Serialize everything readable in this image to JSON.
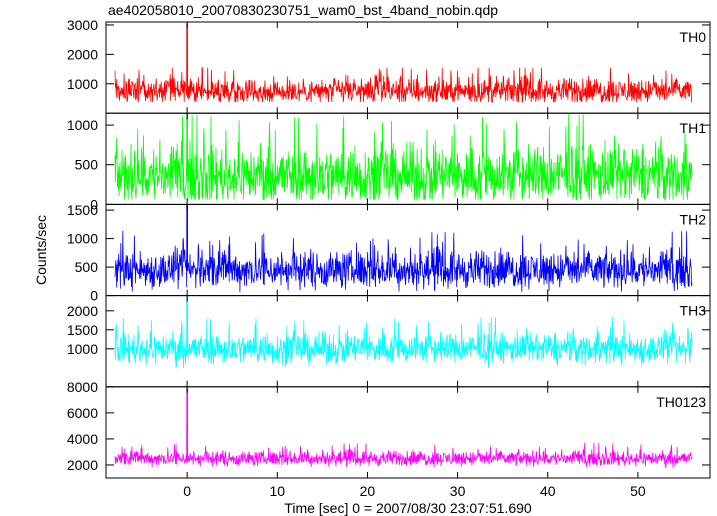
{
  "title": "ae402058010_20070830230751_wam0_bst_4band_nobin.qdp",
  "chart_data": {
    "type": "line",
    "title": "ae402058010_20070830230751_wam0_bst_4band_nobin.qdp",
    "xlabel": "Time [sec] 0 = 2007/08/30 23:07:51.690",
    "ylabel": "Counts/sec",
    "xlim": [
      -9,
      58
    ],
    "x_ticks": [
      0,
      10,
      20,
      30,
      40,
      50
    ],
    "panels": [
      {
        "name": "TH0",
        "color": "#ff0000",
        "ylim": [
          0,
          3100
        ],
        "y_ticks": [
          1000,
          2000,
          3000
        ],
        "baseline": 750,
        "noise": 300,
        "min": 380,
        "max": 1550,
        "peak_time": 0.0,
        "peak_value": 3050
      },
      {
        "name": "TH1",
        "color": "#00ff00",
        "ylim": [
          0,
          1150
        ],
        "y_ticks": [
          0,
          500,
          1000
        ],
        "baseline": 360,
        "noise": 260,
        "min": 60,
        "max": 1150,
        "peak_time": 0.0,
        "peak_value": 1150
      },
      {
        "name": "TH2",
        "color": "#0000ff",
        "ylim": [
          0,
          1600
        ],
        "y_ticks": [
          0,
          500,
          1000,
          1500
        ],
        "baseline": 450,
        "noise": 230,
        "min": 60,
        "max": 1350,
        "peak_time": 0.0,
        "peak_value": 1600
      },
      {
        "name": "TH3",
        "color": "#00ffff",
        "ylim": [
          0,
          2400
        ],
        "y_ticks": [
          1000,
          1500,
          2000
        ],
        "baseline": 1000,
        "noise": 280,
        "min": 430,
        "max": 2200,
        "peak_time": 0.0,
        "peak_value": 2400
      },
      {
        "name": "TH0123",
        "color": "#ff00ff",
        "ylim": [
          1000,
          8000
        ],
        "y_ticks": [
          2000,
          4000,
          6000,
          8000
        ],
        "baseline": 2500,
        "noise": 400,
        "min": 1500,
        "max": 4300,
        "peak_time": 0.0,
        "peak_value": 7900
      }
    ],
    "grid": false,
    "legend": "none"
  }
}
